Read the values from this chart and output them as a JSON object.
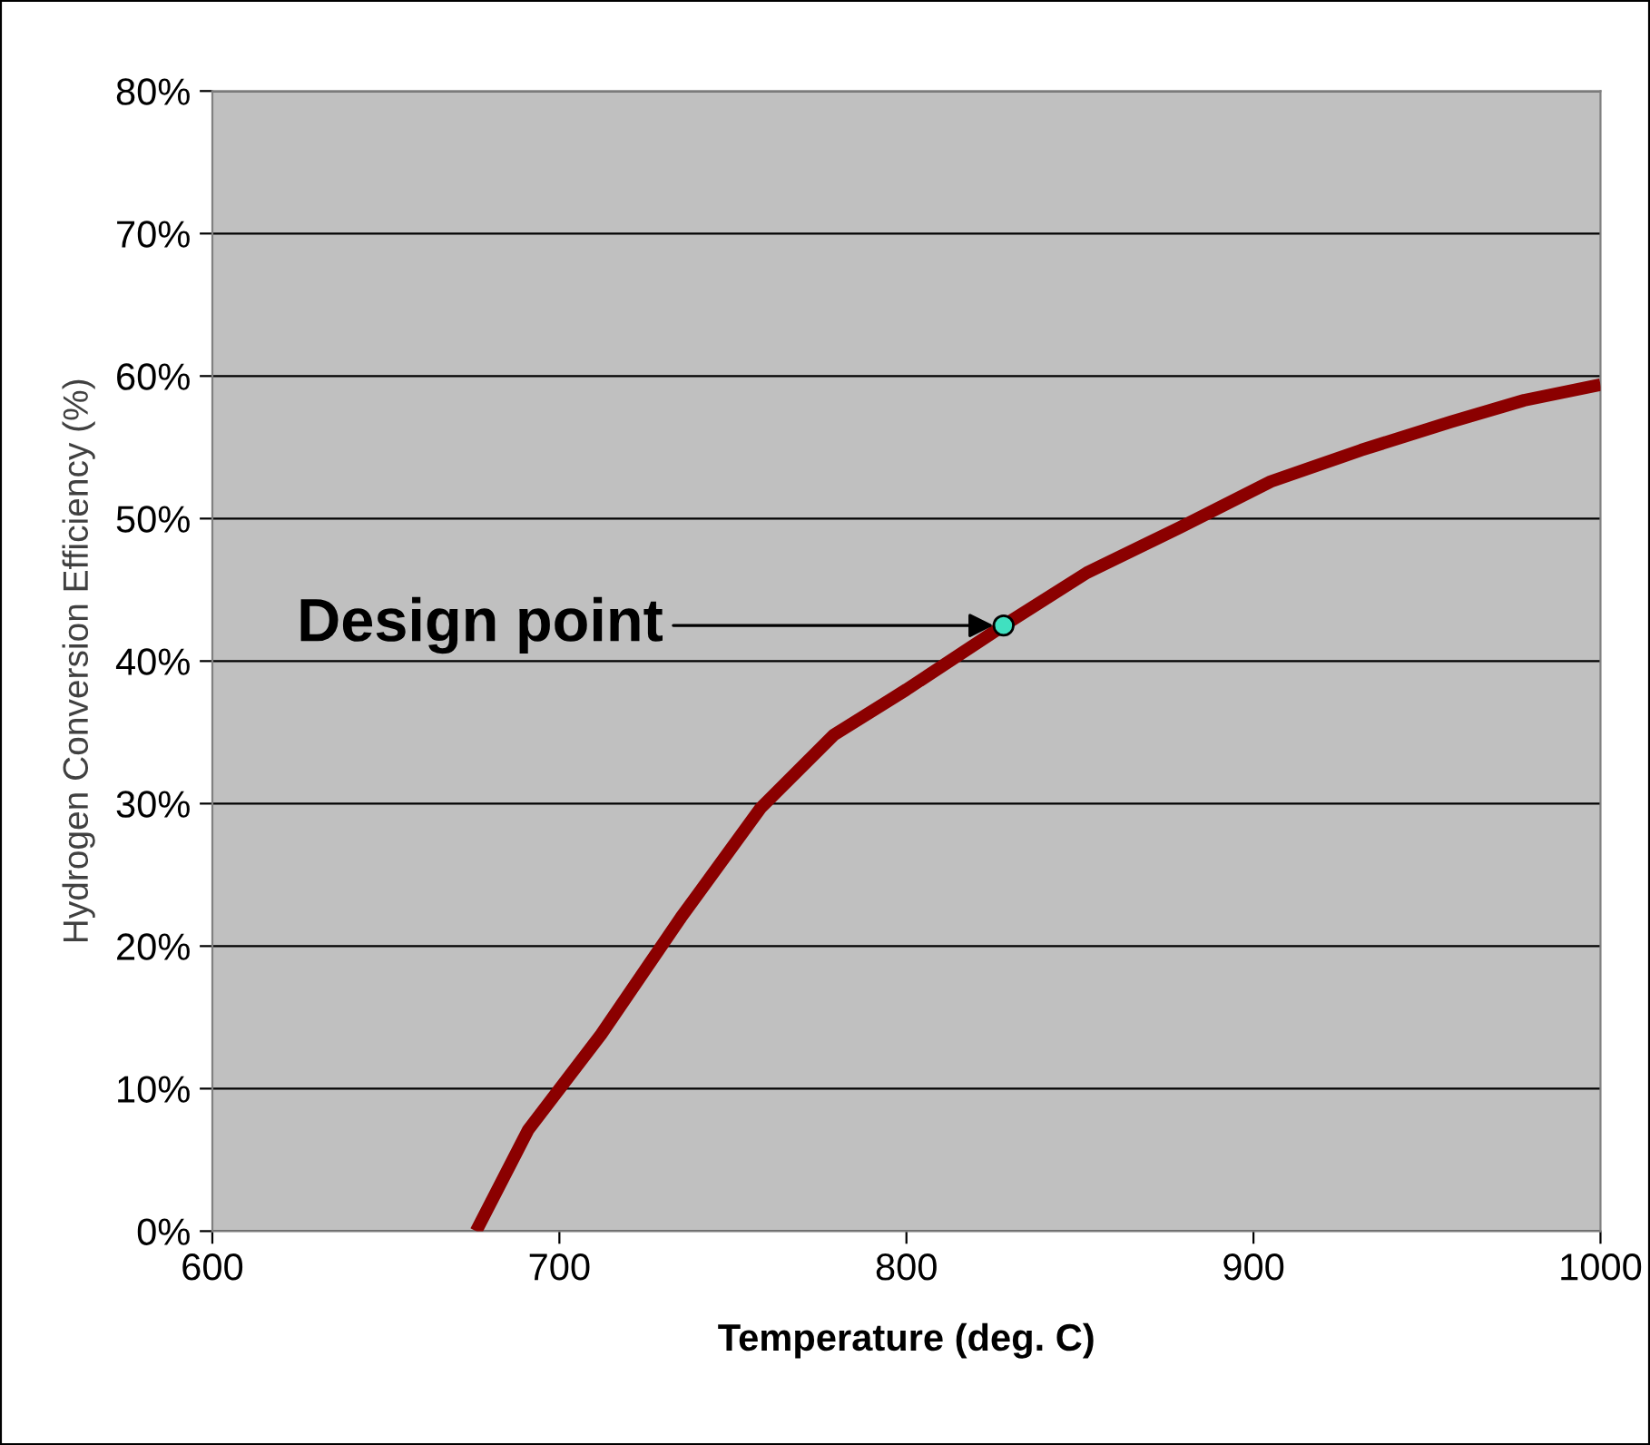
{
  "chart_data": {
    "type": "line",
    "xlabel": "Temperature (deg. C)",
    "ylabel": "Hydrogen Conversion Efficiency (%)",
    "xlim": [
      600,
      1000
    ],
    "xticks": [
      600,
      700,
      800,
      900,
      1000
    ],
    "ylim": [
      0,
      80
    ],
    "yticks": [
      {
        "value": 0,
        "label": "0%"
      },
      {
        "value": 10,
        "label": "10%"
      },
      {
        "value": 20,
        "label": "20%"
      },
      {
        "value": 30,
        "label": "30%"
      },
      {
        "value": 40,
        "label": "40%"
      },
      {
        "value": 50,
        "label": "50%"
      },
      {
        "value": 60,
        "label": "60%"
      },
      {
        "value": 70,
        "label": "70%"
      },
      {
        "value": 80,
        "label": "80%"
      }
    ],
    "grid": "y",
    "legend": false,
    "series": [
      {
        "color": "#8b0000",
        "x": [
          676,
          691,
          712,
          735,
          758,
          779,
          800,
          828,
          852,
          879,
          905,
          931,
          957,
          978,
          1000
        ],
        "values": [
          0,
          7.1,
          13.8,
          22,
          29.7,
          34.8,
          38,
          42.5,
          46.2,
          49.4,
          52.6,
          54.8,
          56.8,
          58.3,
          59.4
        ]
      },
      {
        "type": "scatter",
        "color": "#40e0c0",
        "marker": "circle",
        "x": [
          828
        ],
        "values": [
          42.5
        ]
      }
    ],
    "annotations": [
      {
        "text": "Design point",
        "x": 828,
        "y": 42.5
      }
    ]
  }
}
